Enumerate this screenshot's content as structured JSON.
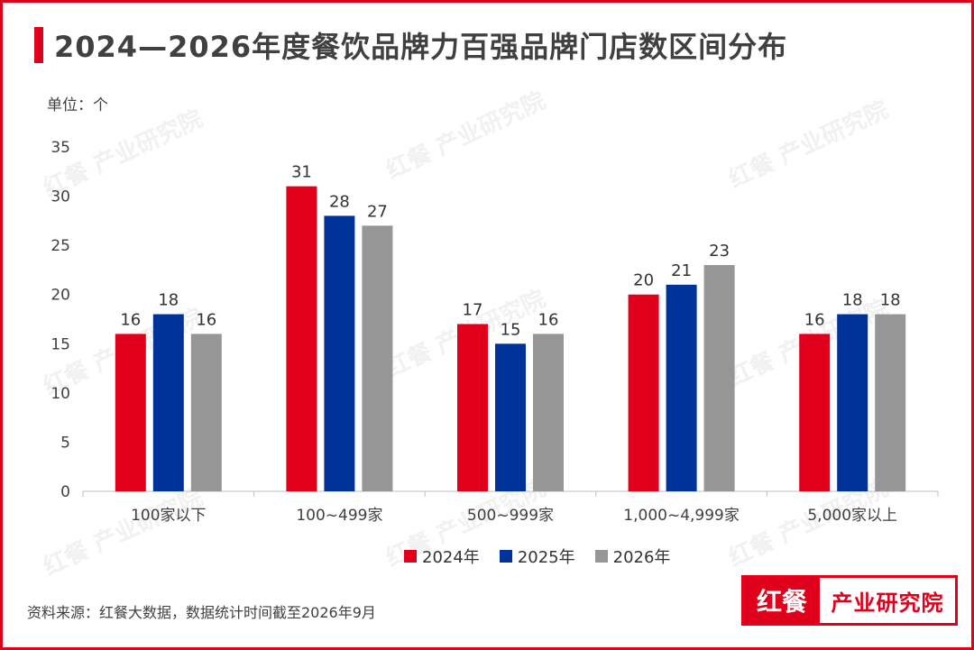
{
  "header": {
    "title": "2024—2026年度餐饮品牌力百强品牌门店数区间分布"
  },
  "unit_label": "单位：个",
  "source": "资料来源：红餐大数据，数据统计时间截至2026年9月",
  "logo": {
    "left": "红餐",
    "right": "产业研究院"
  },
  "watermark": "红餐 产业研究院",
  "colors": {
    "accent": "#e0001b",
    "s2024": "#e0001b",
    "s2025": "#003399",
    "s2026": "#969696"
  },
  "chart_data": {
    "type": "bar",
    "title": "2024—2026年度餐饮品牌力百强品牌门店数区间分布",
    "ylabel": "单位：个",
    "ylim": [
      0,
      35
    ],
    "yticks": [
      0,
      5,
      10,
      15,
      20,
      25,
      30,
      35
    ],
    "categories": [
      "100家以下",
      "100~499家",
      "500~999家",
      "1,000~4,999家",
      "5,000家以上"
    ],
    "series": [
      {
        "name": "2024年",
        "color": "#e0001b",
        "values": [
          16,
          31,
          17,
          20,
          16
        ]
      },
      {
        "name": "2025年",
        "color": "#003399",
        "values": [
          18,
          28,
          15,
          21,
          18
        ]
      },
      {
        "name": "2026年",
        "color": "#969696",
        "values": [
          16,
          27,
          16,
          23,
          18
        ]
      }
    ],
    "legend": "bottom",
    "grid": false
  }
}
